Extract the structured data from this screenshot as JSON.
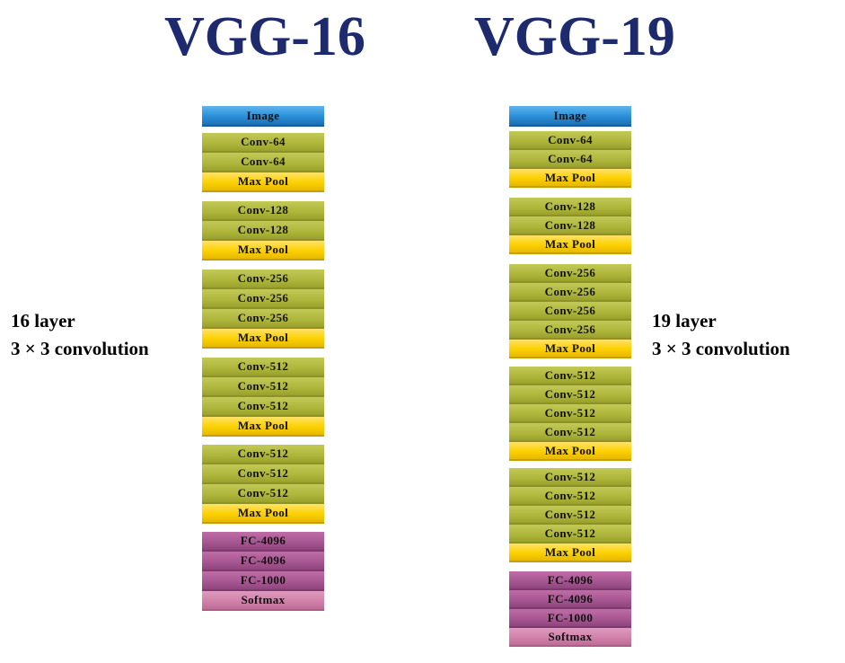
{
  "titles": {
    "left": "VGG-16",
    "right": "VGG-19"
  },
  "labels": {
    "left_line1": "16 layer",
    "left_line2": "3 × 3 convolution",
    "right_line1": "19 layer",
    "right_line2": "3 × 3 convolution"
  },
  "vgg16": [
    {
      "text": "Image",
      "kind": "image"
    },
    {
      "text": "Conv-64",
      "kind": "conv"
    },
    {
      "text": "Conv-64",
      "kind": "conv"
    },
    {
      "text": "Max Pool",
      "kind": "pool"
    },
    {
      "text": "Conv-128",
      "kind": "conv"
    },
    {
      "text": "Conv-128",
      "kind": "conv"
    },
    {
      "text": "Max Pool",
      "kind": "pool"
    },
    {
      "text": "Conv-256",
      "kind": "conv"
    },
    {
      "text": "Conv-256",
      "kind": "conv"
    },
    {
      "text": "Conv-256",
      "kind": "conv"
    },
    {
      "text": "Max Pool",
      "kind": "pool"
    },
    {
      "text": "Conv-512",
      "kind": "conv"
    },
    {
      "text": "Conv-512",
      "kind": "conv"
    },
    {
      "text": "Conv-512",
      "kind": "conv"
    },
    {
      "text": "Max Pool",
      "kind": "pool"
    },
    {
      "text": "Conv-512",
      "kind": "conv"
    },
    {
      "text": "Conv-512",
      "kind": "conv"
    },
    {
      "text": "Conv-512",
      "kind": "conv"
    },
    {
      "text": "Max Pool",
      "kind": "pool"
    },
    {
      "text": "FC-4096",
      "kind": "fc"
    },
    {
      "text": "FC-4096",
      "kind": "fc"
    },
    {
      "text": "FC-1000",
      "kind": "fc"
    },
    {
      "text": "Softmax",
      "kind": "softmax"
    }
  ],
  "vgg19": [
    {
      "text": "Image",
      "kind": "image"
    },
    {
      "text": "Conv-64",
      "kind": "conv"
    },
    {
      "text": "Conv-64",
      "kind": "conv"
    },
    {
      "text": "Max Pool",
      "kind": "pool"
    },
    {
      "text": "Conv-128",
      "kind": "conv"
    },
    {
      "text": "Conv-128",
      "kind": "conv"
    },
    {
      "text": "Max Pool",
      "kind": "pool"
    },
    {
      "text": "Conv-256",
      "kind": "conv"
    },
    {
      "text": "Conv-256",
      "kind": "conv"
    },
    {
      "text": "Conv-256",
      "kind": "conv"
    },
    {
      "text": "Conv-256",
      "kind": "conv"
    },
    {
      "text": "Max Pool",
      "kind": "pool"
    },
    {
      "text": "Conv-512",
      "kind": "conv"
    },
    {
      "text": "Conv-512",
      "kind": "conv"
    },
    {
      "text": "Conv-512",
      "kind": "conv"
    },
    {
      "text": "Conv-512",
      "kind": "conv"
    },
    {
      "text": "Max Pool",
      "kind": "pool"
    },
    {
      "text": "Conv-512",
      "kind": "conv"
    },
    {
      "text": "Conv-512",
      "kind": "conv"
    },
    {
      "text": "Conv-512",
      "kind": "conv"
    },
    {
      "text": "Conv-512",
      "kind": "conv"
    },
    {
      "text": "Max Pool",
      "kind": "pool"
    },
    {
      "text": "FC-4096",
      "kind": "fc"
    },
    {
      "text": "FC-4096",
      "kind": "fc"
    },
    {
      "text": "FC-1000",
      "kind": "fc"
    },
    {
      "text": "Softmax",
      "kind": "softmax"
    }
  ]
}
